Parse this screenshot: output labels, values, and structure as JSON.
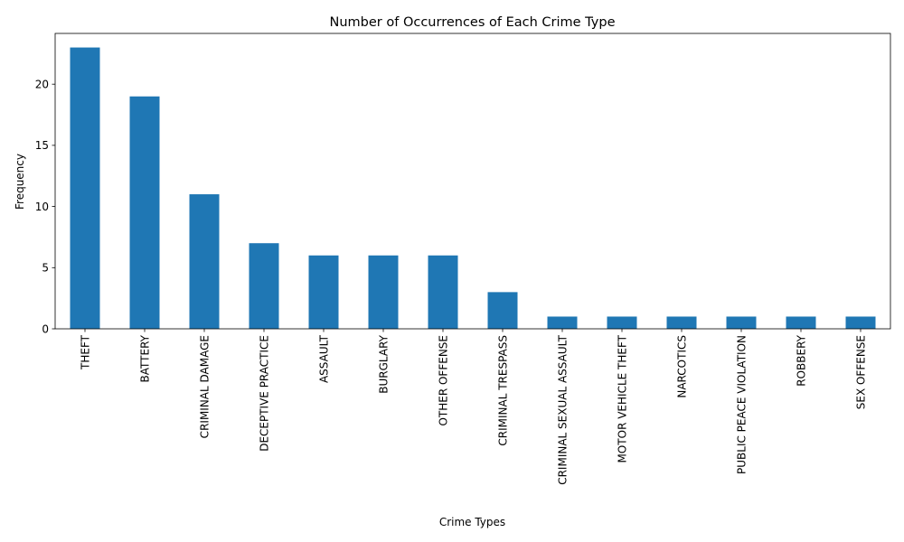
{
  "chart_data": {
    "type": "bar",
    "title": "Number of Occurrences of Each Crime Type",
    "xlabel": "Crime Types",
    "ylabel": "Frequency",
    "categories": [
      "THEFT",
      "BATTERY",
      "CRIMINAL DAMAGE",
      "DECEPTIVE PRACTICE",
      "ASSAULT",
      "BURGLARY",
      "OTHER OFFENSE",
      "CRIMINAL TRESPASS",
      "CRIMINAL SEXUAL ASSAULT",
      "MOTOR VEHICLE THEFT",
      "NARCOTICS",
      "PUBLIC PEACE VIOLATION",
      "ROBBERY",
      "SEX OFFENSE"
    ],
    "values": [
      23,
      19,
      11,
      7,
      6,
      6,
      6,
      3,
      1,
      1,
      1,
      1,
      1,
      1
    ],
    "ylim": [
      0,
      24.15
    ],
    "yticks": [
      0,
      5,
      10,
      15,
      20
    ],
    "grid": false,
    "legend": "none",
    "bar_color": "#1f77b4"
  }
}
